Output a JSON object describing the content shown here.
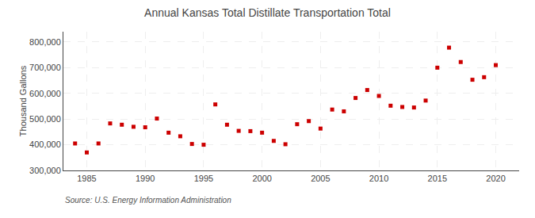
{
  "chart_data": {
    "type": "scatter",
    "title": "Annual Kansas Total Distillate Transportation Total",
    "ylabel": "Thousand Gallons",
    "annotations": [
      "Source: U.S. Energy Information Administration"
    ],
    "x": [
      1984,
      1985,
      1986,
      1987,
      1988,
      1989,
      1990,
      1991,
      1992,
      1993,
      1994,
      1995,
      1996,
      1997,
      1998,
      1999,
      2000,
      2001,
      2002,
      2003,
      2004,
      2005,
      2006,
      2007,
      2008,
      2009,
      2010,
      2011,
      2012,
      2013,
      2014,
      2015,
      2016,
      2017,
      2018,
      2019,
      2020
    ],
    "values": [
      405000,
      370000,
      405000,
      483000,
      478000,
      470000,
      468000,
      502000,
      447000,
      433000,
      403000,
      400000,
      557000,
      478000,
      454000,
      453000,
      447000,
      415000,
      402000,
      480000,
      492000,
      463000,
      537000,
      530000,
      582000,
      613000,
      590000,
      552000,
      547000,
      545000,
      572000,
      700000,
      778000,
      722000,
      653000,
      663000,
      710000
    ],
    "color": "#cc0000",
    "marker": "square",
    "xlim": [
      1983,
      2022
    ],
    "ylim": [
      300000,
      840000
    ],
    "xticks": [
      1985,
      1990,
      1995,
      2000,
      2005,
      2010,
      2015,
      2020
    ],
    "yticks": [
      {
        "value": 300000,
        "label": "300,000"
      },
      {
        "value": 400000,
        "label": "400,000"
      },
      {
        "value": 500000,
        "label": "500,000"
      },
      {
        "value": 600000,
        "label": "600,000"
      },
      {
        "value": 700000,
        "label": "700,000"
      },
      {
        "value": 800000,
        "label": "800,000"
      }
    ],
    "grid": true
  }
}
